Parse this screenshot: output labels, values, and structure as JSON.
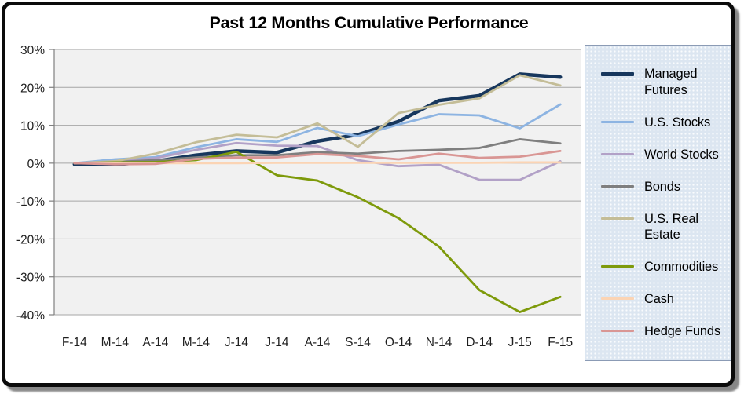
{
  "chart_data": {
    "type": "line",
    "title": "Past 12 Months Cumulative Performance",
    "categories": [
      "F-14",
      "M-14",
      "A-14",
      "M-14",
      "J-14",
      "J-14",
      "A-14",
      "S-14",
      "O-14",
      "N-14",
      "D-14",
      "J-15",
      "F-15"
    ],
    "y_tick_values": [
      30,
      20,
      10,
      0,
      -10,
      -20,
      -30,
      -40
    ],
    "y_tick_labels": [
      "30%",
      "20%",
      "10%",
      "0%",
      "-10%",
      "-20%",
      "-30%",
      "-40%"
    ],
    "ylim": [
      -40,
      30
    ],
    "xlabel": "",
    "ylabel": "",
    "grid": true,
    "legend_position": "right",
    "plot_bg": "#f1f1f1",
    "gridline_color": "#a6a6a6",
    "axis_color": "#808080",
    "series": [
      {
        "name": "Managed Futures",
        "color": "#17375d",
        "stroke_width": 4.5,
        "values": [
          -0.3,
          -0.4,
          0.5,
          2.1,
          3.2,
          2.8,
          5.8,
          7.5,
          11.0,
          16.5,
          17.8,
          23.5,
          22.7
        ]
      },
      {
        "name": "U.S. Stocks",
        "color": "#8db4e2",
        "stroke_width": 2.8,
        "values": [
          0.0,
          1.0,
          1.6,
          4.2,
          6.3,
          5.6,
          9.3,
          7.1,
          10.2,
          12.9,
          12.6,
          9.2,
          15.5
        ]
      },
      {
        "name": "World Stocks",
        "color": "#b2a1c7",
        "stroke_width": 2.8,
        "values": [
          0.0,
          0.5,
          1.3,
          3.5,
          5.3,
          4.6,
          4.5,
          0.8,
          -0.8,
          -0.4,
          -4.4,
          -4.4,
          0.5
        ]
      },
      {
        "name": "Bonds",
        "color": "#7f7f7f",
        "stroke_width": 2.8,
        "values": [
          0.0,
          0.3,
          0.8,
          1.5,
          2.1,
          2.1,
          2.9,
          2.5,
          3.2,
          3.5,
          4.0,
          6.3,
          5.2
        ]
      },
      {
        "name": "U.S. Real Estate",
        "color": "#c4bd97",
        "stroke_width": 2.8,
        "values": [
          0.0,
          0.5,
          2.5,
          5.5,
          7.5,
          6.8,
          10.5,
          4.3,
          13.2,
          15.4,
          17.1,
          23.2,
          20.5
        ]
      },
      {
        "name": "Commodities",
        "color": "#7e9a0b",
        "stroke_width": 2.8,
        "values": [
          0.0,
          0.2,
          0.3,
          0.8,
          3.0,
          -3.2,
          -4.6,
          -9.0,
          -14.5,
          -22.0,
          -33.5,
          -39.3,
          -35.3
        ]
      },
      {
        "name": "Cash",
        "color": "#fbd4b4",
        "stroke_width": 2.8,
        "values": [
          0.0,
          0.0,
          0.0,
          0.0,
          0.0,
          0.1,
          0.1,
          0.1,
          0.1,
          0.1,
          0.1,
          0.2,
          0.2
        ]
      },
      {
        "name": "Hedge Funds",
        "color": "#d99694",
        "stroke_width": 2.8,
        "values": [
          0.0,
          -0.3,
          -0.2,
          1.1,
          1.5,
          1.5,
          2.4,
          1.9,
          1.0,
          2.5,
          1.4,
          1.7,
          3.2
        ]
      }
    ]
  }
}
